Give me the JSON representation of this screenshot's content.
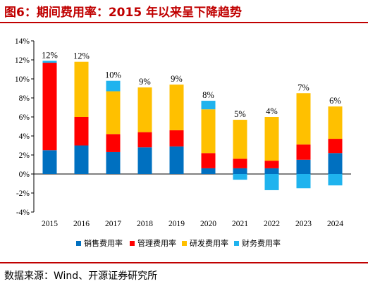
{
  "header": {
    "title": "图6：期间费用率：2015 年以来呈下降趋势"
  },
  "footer": {
    "source": "数据来源：Wind、开源证券研究所"
  },
  "chart_data": {
    "type": "bar",
    "stacked": true,
    "title": "",
    "xlabel": "",
    "ylabel": "",
    "ylim": [
      -4,
      14
    ],
    "ytick_step": 2,
    "y_tick_labels": [
      "-4%",
      "-2%",
      "0%",
      "2%",
      "4%",
      "6%",
      "8%",
      "10%",
      "12%",
      "14%"
    ],
    "grid": false,
    "legend_position": "bottom",
    "categories": [
      "2015",
      "2016",
      "2017",
      "2018",
      "2019",
      "2020",
      "2021",
      "2022",
      "2023",
      "2024"
    ],
    "series": [
      {
        "name": "销售费用率",
        "color": "#0070c0",
        "values": [
          2.5,
          3.0,
          2.3,
          2.8,
          2.9,
          0.6,
          0.6,
          0.6,
          1.5,
          2.2
        ]
      },
      {
        "name": "管理费用率",
        "color": "#ff0000",
        "values": [
          9.2,
          3.0,
          1.9,
          1.6,
          1.7,
          1.6,
          1.0,
          0.8,
          1.6,
          1.5
        ]
      },
      {
        "name": "研发费用率",
        "color": "#ffc000",
        "values": [
          0.0,
          5.8,
          4.5,
          4.7,
          4.8,
          4.6,
          4.1,
          4.6,
          5.4,
          3.4
        ]
      },
      {
        "name": "财务费用率",
        "color": "#1fb3ee",
        "values": [
          0.2,
          0.0,
          1.1,
          0.0,
          0.0,
          0.9,
          -0.6,
          -1.7,
          -1.5,
          -1.2
        ]
      }
    ],
    "total_labels": [
      "12%",
      "12%",
      "10%",
      "9%",
      "9%",
      "8%",
      "5%",
      "4%",
      "7%",
      "6%"
    ]
  }
}
